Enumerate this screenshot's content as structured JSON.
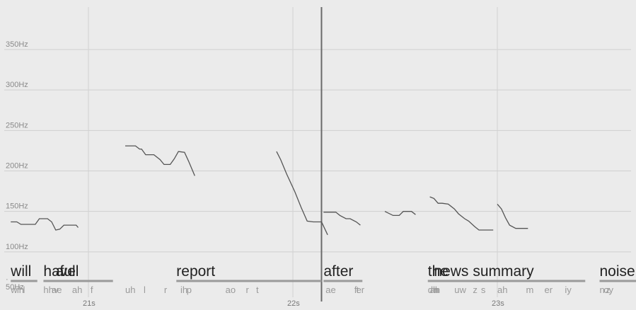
{
  "chart_data": {
    "type": "line",
    "y_unit": "Hz",
    "ylim": [
      50,
      400
    ],
    "xlim": [
      20.62,
      23.98
    ],
    "grid": true,
    "y_ticks": [
      {
        "value": 50,
        "label": "50Hz"
      },
      {
        "value": 100,
        "label": "100Hz"
      },
      {
        "value": 150,
        "label": "150Hz"
      },
      {
        "value": 200,
        "label": "200Hz"
      },
      {
        "value": 250,
        "label": "250Hz"
      },
      {
        "value": 300,
        "label": "300Hz"
      },
      {
        "value": 350,
        "label": "350Hz"
      }
    ],
    "x_ticks": [
      {
        "value": 21,
        "label": "21s"
      },
      {
        "value": 22,
        "label": "22s"
      },
      {
        "value": 23,
        "label": "23s"
      }
    ],
    "cursor_time": 22.14,
    "pitch_segments": [
      [
        [
          20.62,
          137
        ],
        [
          20.65,
          137
        ],
        [
          20.67,
          134
        ],
        [
          20.7,
          134
        ],
        [
          20.74,
          134
        ],
        [
          20.76,
          141
        ],
        [
          20.8,
          141
        ],
        [
          20.82,
          137
        ],
        [
          20.84,
          127
        ],
        [
          20.86,
          128
        ],
        [
          20.88,
          133
        ],
        [
          20.91,
          133
        ],
        [
          20.94,
          133
        ],
        [
          20.95,
          130
        ]
      ],
      [
        [
          21.18,
          231
        ],
        [
          21.23,
          231
        ],
        [
          21.25,
          227
        ],
        [
          21.26,
          227
        ],
        [
          21.28,
          220
        ],
        [
          21.32,
          220
        ],
        [
          21.35,
          214
        ],
        [
          21.37,
          208
        ],
        [
          21.4,
          208
        ],
        [
          21.42,
          215
        ],
        [
          21.44,
          224
        ],
        [
          21.47,
          223
        ],
        [
          21.49,
          212
        ],
        [
          21.52,
          194
        ]
      ],
      [
        [
          21.92,
          224
        ],
        [
          21.94,
          214
        ],
        [
          21.97,
          196
        ],
        [
          22.01,
          174
        ],
        [
          22.04,
          155
        ],
        [
          22.07,
          138
        ],
        [
          22.1,
          137
        ],
        [
          22.14,
          137
        ],
        [
          22.17,
          121
        ]
      ],
      [
        [
          22.15,
          149
        ],
        [
          22.21,
          149
        ],
        [
          22.23,
          145
        ],
        [
          22.26,
          141
        ],
        [
          22.28,
          141
        ],
        [
          22.31,
          137
        ],
        [
          22.33,
          133
        ]
      ],
      [
        [
          22.45,
          150
        ],
        [
          22.49,
          145
        ],
        [
          22.52,
          145
        ],
        [
          22.54,
          150
        ],
        [
          22.58,
          150
        ],
        [
          22.6,
          146
        ]
      ],
      [
        [
          22.67,
          168
        ],
        [
          22.69,
          166
        ],
        [
          22.71,
          160
        ],
        [
          22.73,
          160
        ],
        [
          22.76,
          159
        ],
        [
          22.79,
          153
        ],
        [
          22.81,
          147
        ],
        [
          22.84,
          141
        ],
        [
          22.86,
          138
        ],
        [
          22.89,
          131
        ],
        [
          22.91,
          127
        ],
        [
          22.94,
          127
        ],
        [
          22.98,
          127
        ]
      ],
      [
        [
          23.0,
          159
        ],
        [
          23.02,
          153
        ],
        [
          23.04,
          142
        ],
        [
          23.06,
          133
        ],
        [
          23.09,
          129
        ],
        [
          23.12,
          129
        ],
        [
          23.15,
          129
        ]
      ]
    ],
    "words": [
      {
        "text": "will",
        "start": 20.62,
        "end": 20.75
      },
      {
        "text": "have",
        "start": 20.78,
        "end": 20.86
      },
      {
        "text": "a",
        "start": 20.84,
        "end": 20.88
      },
      {
        "text": "full",
        "start": 20.86,
        "end": 21.12
      },
      {
        "text": "report",
        "start": 21.43,
        "end": 22.14
      },
      {
        "text": "after",
        "start": 22.15,
        "end": 22.34
      },
      {
        "text": "the",
        "start": 22.66,
        "end": 22.74
      },
      {
        "text": "news",
        "start": 22.69,
        "end": 22.9
      },
      {
        "text": "summary",
        "start": 22.88,
        "end": 23.43
      },
      {
        "text": "noise",
        "start": 23.5,
        "end": 23.98
      }
    ],
    "phones": [
      {
        "text": "w",
        "t": 20.62
      },
      {
        "text": "ih",
        "t": 20.65
      },
      {
        "text": "l",
        "t": 20.68
      },
      {
        "text": "hh",
        "t": 20.78
      },
      {
        "text": "ae",
        "t": 20.82
      },
      {
        "text": "v",
        "t": 20.83
      },
      {
        "text": "ah",
        "t": 20.92
      },
      {
        "text": "f",
        "t": 21.01
      },
      {
        "text": "uh",
        "t": 21.18
      },
      {
        "text": "l",
        "t": 21.27
      },
      {
        "text": "r",
        "t": 21.37
      },
      {
        "text": "ih",
        "t": 21.45
      },
      {
        "text": "p",
        "t": 21.48
      },
      {
        "text": "ao",
        "t": 21.67
      },
      {
        "text": "r",
        "t": 21.77
      },
      {
        "text": "t",
        "t": 21.82
      },
      {
        "text": "ae",
        "t": 22.16
      },
      {
        "text": "f",
        "t": 22.3
      },
      {
        "text": "t",
        "t": 22.31
      },
      {
        "text": "er",
        "t": 22.31
      },
      {
        "text": "dh",
        "t": 22.66
      },
      {
        "text": "ah",
        "t": 22.67
      },
      {
        "text": "n",
        "t": 22.69
      },
      {
        "text": "uw",
        "t": 22.79
      },
      {
        "text": "z",
        "t": 22.88
      },
      {
        "text": "s",
        "t": 22.92
      },
      {
        "text": "ah",
        "t": 23.0
      },
      {
        "text": "m",
        "t": 23.14
      },
      {
        "text": "er",
        "t": 23.23
      },
      {
        "text": "iy",
        "t": 23.33
      },
      {
        "text": "n",
        "t": 23.5
      },
      {
        "text": "oy",
        "t": 23.52
      },
      {
        "text": "z",
        "t": 23.53
      }
    ]
  }
}
